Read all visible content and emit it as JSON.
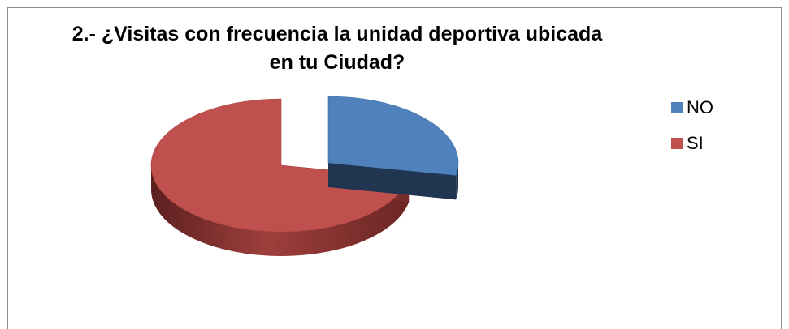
{
  "chart_data": {
    "type": "pie",
    "style": "3d-exploded",
    "title": "2.- ¿Visitas con frecuencia  la unidad deportiva ubicada\nen tu Ciudad?",
    "slices": [
      {
        "label": "NO",
        "value": 28,
        "color": "#4f81bd"
      },
      {
        "label": "SI",
        "value": 72,
        "color": "#c0504d"
      }
    ],
    "legend_position": "right"
  }
}
